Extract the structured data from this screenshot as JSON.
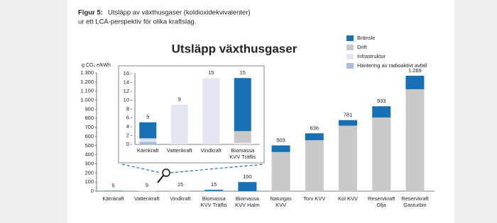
{
  "caption": {
    "label": "Figur 5:",
    "line1": "Utsläpp av växthusgaser (koldioxidekvivalenter)",
    "line2": "ur ett LCA-perspektiv för olika kraftslag."
  },
  "chart_data": [
    {
      "type": "stacked-bar",
      "title": "Utsläpp växthusgaser",
      "y_label": "g CO₂ e/kWh",
      "categories": [
        "Kärnkraft",
        "Vattenkraft",
        "Vindkraft",
        "Biomassa\nKVV Träflis",
        "Biomassa\nKVV Halm",
        "Naturgas\nKVV",
        "Torv KVV",
        "Kol KVV",
        "Reservkraft\nOlja",
        "Reservkraft\nGasturbin"
      ],
      "series": [
        {
          "name": "Bränsle",
          "color": "#1770b3",
          "values": [
            3.6,
            0,
            0,
            12,
            100,
            73,
            76,
            61,
            123,
            149
          ]
        },
        {
          "name": "Drift",
          "color": "#c9c9c9",
          "values": [
            0.2,
            0,
            0,
            2.6,
            0,
            430,
            560,
            720,
            810,
            1120
          ]
        },
        {
          "name": "Infrastruktur",
          "color": "#e4e7f2",
          "values": [
            0.6,
            9,
            15,
            0.4,
            0,
            0,
            0,
            0,
            0,
            0
          ]
        },
        {
          "name": "Hantering av radioaktivt avfall",
          "color": "#a7bde0",
          "values": [
            0.6,
            0,
            0,
            0,
            0,
            0,
            0,
            0,
            0,
            0
          ]
        }
      ],
      "totals": {
        "values": [
          5,
          9,
          15,
          15,
          100,
          503,
          636,
          781,
          933,
          1269
        ],
        "value_labels": [
          "5",
          "9",
          "15",
          "15",
          "100",
          "503",
          "636",
          "781",
          "933",
          "1.269"
        ]
      },
      "ylim": [
        0,
        1300
      ],
      "yticks": [
        0,
        100,
        200,
        300,
        400,
        500,
        600,
        700,
        800,
        900,
        {
          "value": 1000,
          "label": "1.000"
        },
        {
          "value": 1100,
          "label": "1.100"
        },
        {
          "value": 1200,
          "label": "1.200"
        },
        {
          "value": 1300,
          "label": "1.300"
        }
      ],
      "grid": false,
      "legend": "upper right"
    },
    {
      "type": "stacked-bar",
      "categories": [
        "Kärnkraft",
        "Vattenkraft",
        "Vindkraft",
        "Biomassa\nKVV Träflis"
      ],
      "series": [
        {
          "color": "#1770b3",
          "values": [
            3.6,
            0,
            0,
            12
          ]
        },
        {
          "color": "#c9c9c9",
          "values": [
            0.2,
            0,
            0,
            2.6
          ]
        },
        {
          "color": "#e4e7f2",
          "values": [
            0.6,
            9,
            15,
            0.4
          ]
        },
        {
          "color": "#a7bde0",
          "values": [
            0.6,
            0,
            0,
            0
          ]
        }
      ],
      "totals": {
        "values": [
          5,
          9,
          15,
          15
        ]
      },
      "ylim": [
        0,
        16
      ],
      "yticks": [
        0,
        2,
        4,
        6,
        8,
        10,
        12,
        14,
        16
      ],
      "grid": false
    }
  ]
}
